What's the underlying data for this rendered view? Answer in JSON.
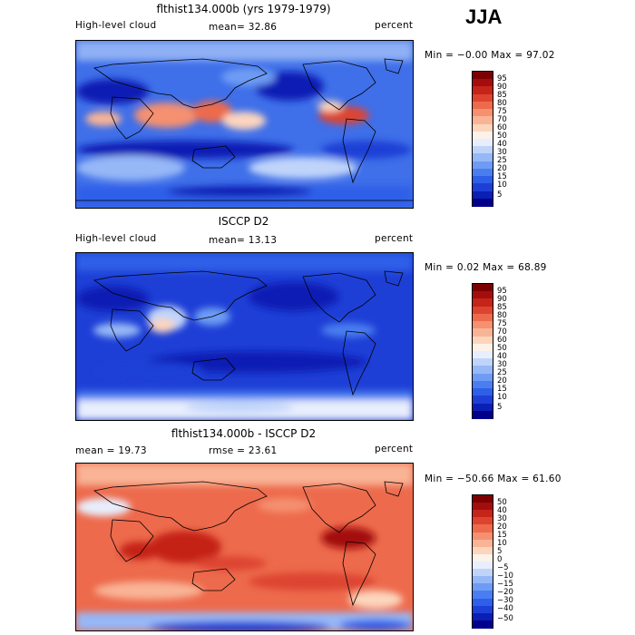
{
  "season": "JJA",
  "colors": {
    "abs_scale": [
      "#00008b",
      "#0a1fb4",
      "#1e3fd6",
      "#2e5fe8",
      "#4a7ef0",
      "#6e9cf4",
      "#96b8f7",
      "#c0d4fa",
      "#e8eefc",
      "#fdf2e8",
      "#fcd5bd",
      "#f9b496",
      "#f59070",
      "#ed6a4c",
      "#dd4430",
      "#c52418",
      "#a30d0d",
      "#7d0000"
    ],
    "diff_scale": [
      "#00008b",
      "#0a1fb4",
      "#1e3fd6",
      "#2e5fe8",
      "#4a7ef0",
      "#6e9cf4",
      "#96b8f7",
      "#c0d4fa",
      "#e8eefc",
      "#fdf2e8",
      "#fcd5bd",
      "#f9b496",
      "#f59070",
      "#ed6a4c",
      "#dd4430",
      "#c52418",
      "#a30d0d",
      "#7d0000"
    ]
  },
  "panels": [
    {
      "title": "flthist134.000b (yrs 1979-1979)",
      "left_label": "High-level cloud",
      "mean_label": "mean=  32.86",
      "units": "percent",
      "range": "Min =   −0.00 Max =   97.02",
      "colorbar_ticks": [
        "95",
        "90",
        "85",
        "80",
        "75",
        "70",
        "60",
        "50",
        "40",
        "30",
        "25",
        "20",
        "15",
        "10",
        "5"
      ]
    },
    {
      "title": "ISCCP D2",
      "left_label": "High-level cloud",
      "mean_label": "mean=  13.13",
      "units": "percent",
      "range": "Min =   0.02 Max =   68.89",
      "colorbar_ticks": [
        "95",
        "90",
        "85",
        "80",
        "75",
        "70",
        "60",
        "50",
        "40",
        "30",
        "25",
        "20",
        "15",
        "10",
        "5"
      ]
    },
    {
      "title": "flthist134.000b - ISCCP D2",
      "left_label": "mean =  19.73",
      "mean_label": "rmse =  23.61",
      "units": "percent",
      "range": "Min = −50.66 Max =  61.60",
      "colorbar_ticks": [
        "50",
        "40",
        "30",
        "20",
        "15",
        "10",
        "5",
        "0",
        "−5",
        "−10",
        "−15",
        "−20",
        "−30",
        "−40",
        "−50"
      ]
    }
  ]
}
